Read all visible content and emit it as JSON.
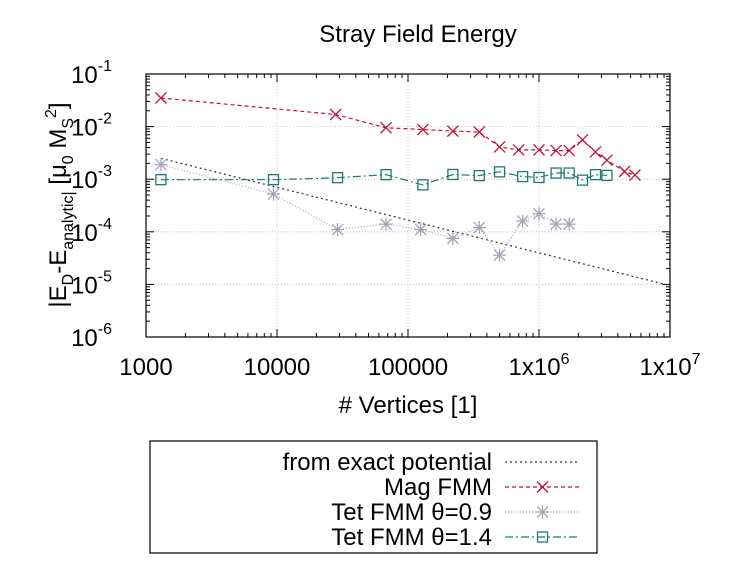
{
  "chart_data": {
    "type": "line",
    "title": "Stray Field Energy",
    "xlabel": "# Vertices [1]",
    "ylabel": "|E_D-E_analytic| [μ_0 M_S^2]",
    "xscale": "log",
    "yscale": "log",
    "xlim": [
      1000,
      10000000
    ],
    "ylim": [
      1e-06,
      0.1
    ],
    "xticks": [
      {
        "value": 1000,
        "label": "1000"
      },
      {
        "value": 10000,
        "label": "10000"
      },
      {
        "value": 100000,
        "label": "100000"
      },
      {
        "value": 1000000,
        "label": "1x10",
        "exp": "6"
      },
      {
        "value": 10000000,
        "label": "1x10",
        "exp": "7"
      }
    ],
    "yticks": [
      {
        "value": 0.1,
        "base": "10",
        "exp": "-1"
      },
      {
        "value": 0.01,
        "base": "10",
        "exp": "-2"
      },
      {
        "value": 0.001,
        "base": "10",
        "exp": "-3"
      },
      {
        "value": 0.0001,
        "base": "10",
        "exp": "-4"
      },
      {
        "value": 1e-05,
        "base": "10",
        "exp": "-5"
      },
      {
        "value": 1e-06,
        "base": "10",
        "exp": "-6"
      }
    ],
    "grid": true,
    "legend_position": "below",
    "series": [
      {
        "name": "from exact potential",
        "color": "#333333",
        "dash": "2,3",
        "marker": "none",
        "points": [
          [
            1300,
            0.0025
          ],
          [
            10000000,
            9.5e-06
          ]
        ]
      },
      {
        "name": "Mag FMM",
        "color": "#c0143c",
        "dash": "4,3",
        "marker": "x",
        "points": [
          [
            1300,
            0.035
          ],
          [
            28000,
            0.017
          ],
          [
            68000,
            0.0095
          ],
          [
            130000,
            0.0088
          ],
          [
            220000,
            0.0082
          ],
          [
            350000,
            0.0079
          ],
          [
            500000,
            0.0041
          ],
          [
            700000,
            0.0036
          ],
          [
            1000000,
            0.0036
          ],
          [
            1350000,
            0.0035
          ],
          [
            1700000,
            0.0035
          ],
          [
            2150000,
            0.0056
          ],
          [
            2700000,
            0.0033
          ],
          [
            3300000,
            0.0023
          ],
          [
            4500000,
            0.0014
          ],
          [
            5400000,
            0.0012
          ]
        ]
      },
      {
        "name": "Tet FMM θ=0.9",
        "color": "#a9a3b8",
        "dash": "1,2",
        "marker": "star",
        "points": [
          [
            1300,
            0.0019
          ],
          [
            9400,
            0.00052
          ],
          [
            29000,
            0.00011
          ],
          [
            68000,
            0.00014
          ],
          [
            125000,
            0.00011
          ],
          [
            220000,
            7.5e-05
          ],
          [
            350000,
            0.00012
          ],
          [
            500000,
            3.6e-05
          ],
          [
            750000,
            0.00016
          ],
          [
            1000000,
            0.00022
          ],
          [
            1350000,
            0.00014
          ],
          [
            1700000,
            0.00014
          ]
        ]
      },
      {
        "name": "Tet FMM θ=1.4",
        "color": "#1e7a73",
        "dash": "8,3,2,3",
        "marker": "square",
        "points": [
          [
            1300,
            0.00098
          ],
          [
            9400,
            0.00098
          ],
          [
            29000,
            0.00107
          ],
          [
            68000,
            0.00122
          ],
          [
            130000,
            0.00078
          ],
          [
            220000,
            0.00123
          ],
          [
            350000,
            0.00117
          ],
          [
            500000,
            0.00138
          ],
          [
            750000,
            0.00112
          ],
          [
            1000000,
            0.00108
          ],
          [
            1350000,
            0.00131
          ],
          [
            1700000,
            0.00131
          ],
          [
            2150000,
            0.00096
          ],
          [
            2700000,
            0.00122
          ],
          [
            3300000,
            0.00118
          ]
        ]
      }
    ]
  }
}
